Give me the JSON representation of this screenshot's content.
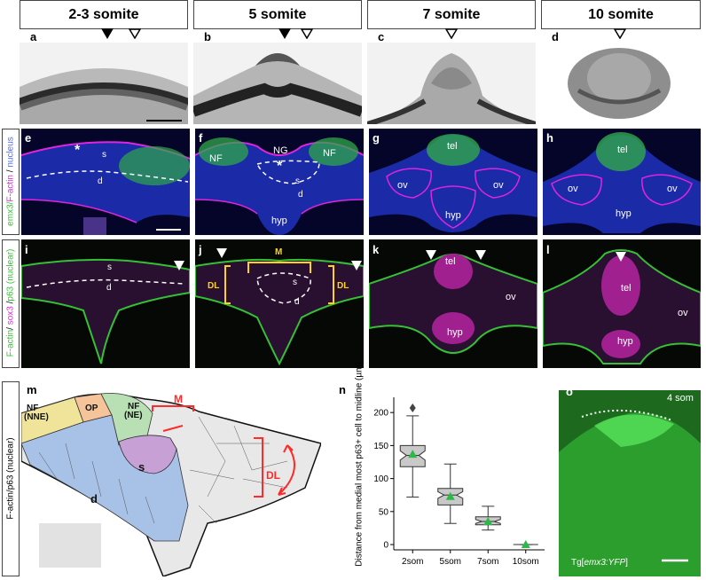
{
  "stages": [
    "2-3 somite",
    "5 somite",
    "7 somite",
    "10 somite"
  ],
  "panel_letters": {
    "a": "a",
    "b": "b",
    "c": "c",
    "d": "d",
    "e": "e",
    "f": "f",
    "g": "g",
    "h": "h",
    "i": "i",
    "j": "j",
    "k": "k",
    "l": "l",
    "m": "m",
    "n": "n",
    "o": "o"
  },
  "row2_side": {
    "emx3": "emx3",
    "slash1": "/",
    "factin": "F-actin",
    "slash2": " / ",
    "nucleus": "nucleus"
  },
  "row3_side": {
    "factin": "F-actin",
    "slash1": "/ ",
    "sox3": "sox3",
    "slash2": " /",
    "p63": "p63",
    "suffix": " (nuclear)"
  },
  "row4_side": "F-actin/p63 (nuclear)",
  "labels": {
    "e": {
      "star": "*",
      "s": "s",
      "d": "d"
    },
    "f": {
      "NF_l": "NF",
      "NG": "NG",
      "NF_r": "NF",
      "star": "*",
      "s": "s",
      "d": "d",
      "hyp": "hyp"
    },
    "g": {
      "tel": "tel",
      "ov_l": "ov",
      "ov_r": "ov",
      "hyp": "hyp"
    },
    "h": {
      "tel": "tel",
      "ov_l": "ov",
      "ov_r": "ov",
      "hyp": "hyp"
    },
    "i": {
      "s": "s",
      "d": "d"
    },
    "j": {
      "M": "M",
      "DL_l": "DL",
      "DL_r": "DL",
      "s": "s",
      "d": "d"
    },
    "k": {
      "tel": "tel",
      "ov": "ov",
      "hyp": "hyp"
    },
    "l": {
      "tel": "tel",
      "ov": "ov",
      "hyp": "hyp"
    },
    "m": {
      "NF_NNE_a": "NF",
      "NF_NNE_b": "(NNE)",
      "OP": "OP",
      "NF_NE_a": "NF",
      "NF_NE_b": "(NE)",
      "M": "M",
      "DL": "DL",
      "s": "s",
      "d": "d"
    },
    "o": {
      "stage": "4 som",
      "tg_a": "Tg[",
      "tg_b": "emx3:YFP",
      "tg_c": "]"
    }
  },
  "colors": {
    "row2_bg": "#05052a",
    "row3_bg": "#050805",
    "green_text": "#2fc52f",
    "magenta_text": "#e024e0",
    "blue_text": "#4a6cff",
    "box_fill": "#c9c9c9",
    "mean_marker": "#2db84a",
    "yfp": "#38c83a"
  },
  "chart_data": {
    "type": "box",
    "title": "",
    "xlabel": "",
    "ylabel": "Distance from medial most p63+ cell to midline (µm)",
    "ylim": [
      -8,
      215
    ],
    "yticks": [
      0,
      50,
      100,
      150,
      200
    ],
    "categories": [
      "2som",
      "5som",
      "7som",
      "10som"
    ],
    "boxes": [
      {
        "name": "2som",
        "min": 72,
        "q1": 118,
        "median": 135,
        "q3": 150,
        "max": 195,
        "mean": 137,
        "notch_lo": 128,
        "notch_hi": 142,
        "outliers": [
          207
        ]
      },
      {
        "name": "5som",
        "min": 32,
        "q1": 60,
        "median": 75,
        "q3": 85,
        "max": 122,
        "mean": 73,
        "notch_lo": 70,
        "notch_hi": 80,
        "outliers": []
      },
      {
        "name": "7som",
        "min": 22,
        "q1": 30,
        "median": 35,
        "q3": 42,
        "max": 58,
        "mean": 35,
        "notch_lo": 32,
        "notch_hi": 38,
        "outliers": []
      },
      {
        "name": "10som",
        "min": 0,
        "q1": 0,
        "median": 0,
        "q3": 0,
        "max": 0,
        "mean": 0,
        "notch_lo": 0,
        "notch_hi": 0,
        "outliers": []
      }
    ]
  }
}
